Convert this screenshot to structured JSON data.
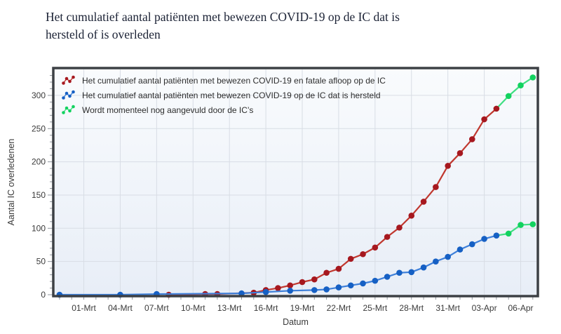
{
  "page": {
    "title_lines": [
      "Het cumulatief aantal patiënten met bewezen COVID-19 op de IC dat is",
      "hersteld of is overleden"
    ]
  },
  "chart_data": {
    "type": "line",
    "title": "Het cumulatief aantal patiënten met bewezen COVID-19 op de IC dat is hersteld of is overleden",
    "xlabel": "Datum",
    "ylabel": "Aantal IC overledenen",
    "grid": true,
    "legend_position": "top-left-inside",
    "x_unit": "days-since-01-Mrt",
    "xlim": [
      -2.4,
      37.3
    ],
    "ylim": [
      0,
      339
    ],
    "yticks": [
      0,
      50,
      100,
      150,
      200,
      250,
      300
    ],
    "xticks": [
      [
        0,
        "01-Mrt"
      ],
      [
        3,
        "04-Mrt"
      ],
      [
        6,
        "07-Mrt"
      ],
      [
        9,
        "10-Mrt"
      ],
      [
        12,
        "13-Mrt"
      ],
      [
        15,
        "16-Mrt"
      ],
      [
        18,
        "19-Mrt"
      ],
      [
        21,
        "22-Mrt"
      ],
      [
        24,
        "25-Mrt"
      ],
      [
        27,
        "28-Mrt"
      ],
      [
        30,
        "31-Mrt"
      ],
      [
        33,
        "03-Apr"
      ],
      [
        36,
        "06-Apr"
      ]
    ],
    "colors": {
      "grid": "#d8dde5",
      "frame": "#3c4045",
      "tick": "#8f959d",
      "plot_bg_top": "#f9fbfd",
      "plot_bg_bottom": "#e8eef7"
    },
    "provisional_color": {
      "line": "#3fdf82",
      "dot": "#12d25f"
    },
    "series": [
      {
        "name": "Het cumulatief aantal patiënten met bewezen COVID-19 en fatale afloop op de IC",
        "line_color": "#c0372e",
        "dot_color": "#a6181f",
        "provisional_last_n": 3,
        "points": [
          [
            7,
            0
          ],
          [
            10,
            1
          ],
          [
            11,
            1
          ],
          [
            14,
            3
          ],
          [
            15,
            7
          ],
          [
            16,
            10
          ],
          [
            17,
            14
          ],
          [
            18,
            19
          ],
          [
            19,
            23
          ],
          [
            20,
            33
          ],
          [
            21,
            39
          ],
          [
            22,
            54
          ],
          [
            23,
            61
          ],
          [
            24,
            71
          ],
          [
            25,
            87
          ],
          [
            26,
            101
          ],
          [
            27,
            119
          ],
          [
            28,
            140
          ],
          [
            29,
            162
          ],
          [
            30,
            194
          ],
          [
            31,
            213
          ],
          [
            32,
            234
          ],
          [
            33,
            264
          ],
          [
            34,
            280
          ],
          [
            35,
            299
          ],
          [
            36,
            315
          ],
          [
            37,
            327
          ]
        ]
      },
      {
        "name": "Het cumulatief aantal patiënten met bewezen COVID-19 op de IC dat is hersteld",
        "line_color": "#3d7fd9",
        "dot_color": "#1660c4",
        "provisional_last_n": 3,
        "points": [
          [
            -2,
            0
          ],
          [
            3,
            0
          ],
          [
            6,
            1
          ],
          [
            13,
            2
          ],
          [
            15,
            4
          ],
          [
            17,
            6
          ],
          [
            19,
            7
          ],
          [
            20,
            8
          ],
          [
            21,
            11
          ],
          [
            22,
            14
          ],
          [
            23,
            17
          ],
          [
            24,
            21
          ],
          [
            25,
            27
          ],
          [
            26,
            33
          ],
          [
            27,
            34
          ],
          [
            28,
            41
          ],
          [
            29,
            50
          ],
          [
            30,
            57
          ],
          [
            31,
            68
          ],
          [
            32,
            76
          ],
          [
            33,
            84
          ],
          [
            34,
            89
          ],
          [
            35,
            92
          ],
          [
            36,
            105
          ],
          [
            37,
            106
          ]
        ]
      },
      {
        "name": "Wordt momenteel nog aangevuld door de IC’s",
        "line_color": "#3fdf82",
        "dot_color": "#12d25f",
        "provisional_last_n": 0,
        "points": []
      }
    ]
  }
}
